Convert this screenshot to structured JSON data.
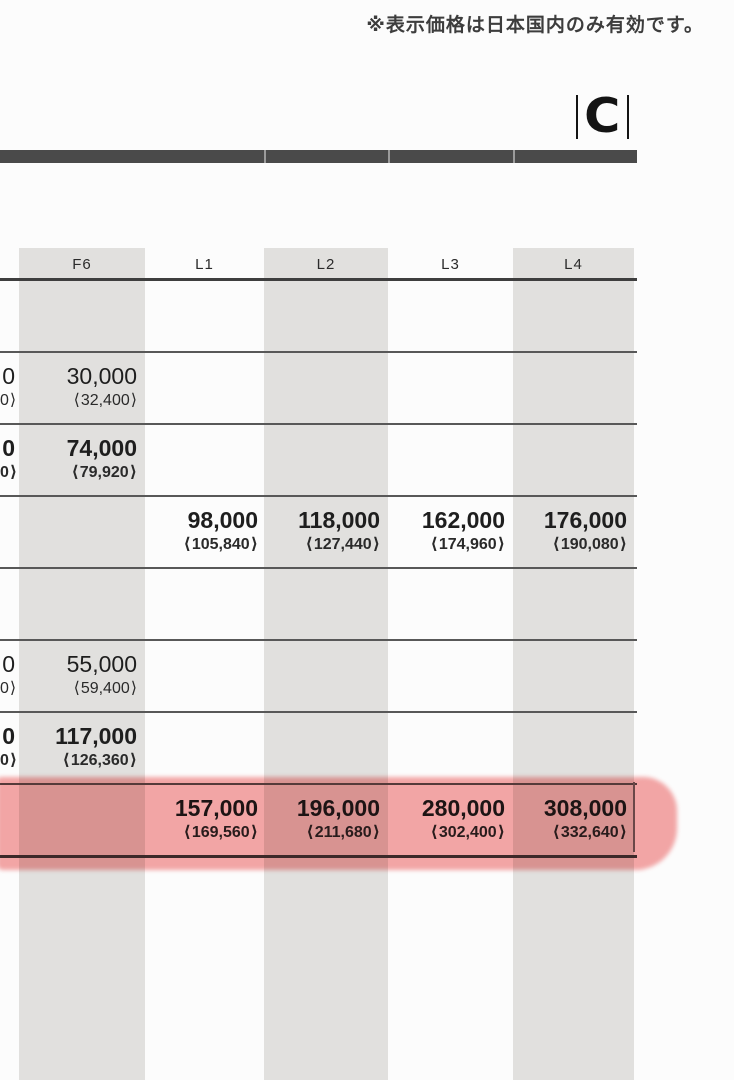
{
  "note": "※表示価格は日本国内のみ有効です。",
  "logo": {
    "letter": "C"
  },
  "highlight_color": "#f39494",
  "table": {
    "columns": [
      "",
      "F6",
      "L1",
      "L2",
      "L3",
      "L4"
    ],
    "rows": [
      {
        "name": "row-blank-1",
        "bold": false,
        "highlighted": false,
        "cells": []
      },
      {
        "name": "row-30000",
        "bold": false,
        "highlighted": false,
        "cells": [
          {
            "col": "cut",
            "price": "0",
            "tax": "0"
          },
          {
            "col": "f6",
            "price": "30,000",
            "tax": "32,400"
          }
        ]
      },
      {
        "name": "row-74000",
        "bold": true,
        "highlighted": false,
        "cells": [
          {
            "col": "cut",
            "price": "0",
            "tax": "0"
          },
          {
            "col": "f6",
            "price": "74,000",
            "tax": "79,920"
          }
        ]
      },
      {
        "name": "row-98000",
        "bold": true,
        "highlighted": false,
        "cells": [
          {
            "col": "l1",
            "price": "98,000",
            "tax": "105,840"
          },
          {
            "col": "l2",
            "price": "118,000",
            "tax": "127,440"
          },
          {
            "col": "l3",
            "price": "162,000",
            "tax": "174,960"
          },
          {
            "col": "l4",
            "price": "176,000",
            "tax": "190,080"
          }
        ]
      },
      {
        "name": "row-blank-2",
        "bold": false,
        "highlighted": false,
        "cells": []
      },
      {
        "name": "row-55000",
        "bold": false,
        "highlighted": false,
        "cells": [
          {
            "col": "cut",
            "price": "0",
            "tax": "0"
          },
          {
            "col": "f6",
            "price": "55,000",
            "tax": "59,400"
          }
        ]
      },
      {
        "name": "row-117000",
        "bold": true,
        "highlighted": false,
        "cells": [
          {
            "col": "cut",
            "price": "0",
            "tax": "0"
          },
          {
            "col": "f6",
            "price": "117,000",
            "tax": "126,360"
          }
        ]
      },
      {
        "name": "row-157000-highlighted",
        "bold": true,
        "highlighted": true,
        "cells": [
          {
            "col": "l1",
            "price": "157,000",
            "tax": "169,560"
          },
          {
            "col": "l2",
            "price": "196,000",
            "tax": "211,680"
          },
          {
            "col": "l3",
            "price": "280,000",
            "tax": "302,400"
          },
          {
            "col": "l4",
            "price": "308,000",
            "tax": "332,640"
          }
        ]
      }
    ]
  }
}
